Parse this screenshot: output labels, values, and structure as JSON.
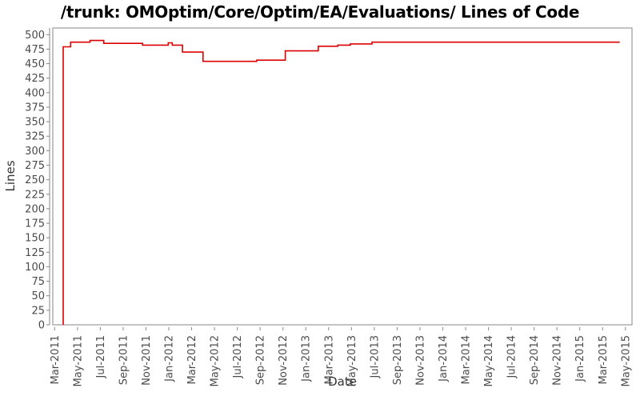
{
  "title": "/trunk: OMOptim/Core/Optim/EA/Evaluations/ Lines of Code",
  "colors": {
    "line": "#dd0000",
    "frame": "#878787",
    "tick_label": "#4a4a4a",
    "axis_title": "#333333",
    "background": "#ffffff"
  },
  "chart_data": {
    "type": "line",
    "subtype": "step",
    "title": "/trunk: OMOptim/Core/Optim/EA/Evaluations/ Lines of Code",
    "xlabel": "Date",
    "ylabel": "Lines",
    "grid": false,
    "legend_position": "none",
    "ylim": [
      0,
      511
    ],
    "y_ticks": [
      0,
      25,
      50,
      75,
      100,
      125,
      150,
      175,
      200,
      225,
      250,
      275,
      300,
      325,
      350,
      375,
      400,
      425,
      450,
      475,
      500
    ],
    "x_tick_labels": [
      "Mar-2011",
      "May-2011",
      "Jul-2011",
      "Sep-2011",
      "Nov-2011",
      "Jan-2012",
      "Mar-2012",
      "May-2012",
      "Jul-2012",
      "Sep-2012",
      "Nov-2012",
      "Jan-2013",
      "Mar-2013",
      "May-2013",
      "Jul-2013",
      "Sep-2013",
      "Nov-2013",
      "Jan-2014",
      "Mar-2014",
      "May-2014",
      "Jul-2014",
      "Sep-2014",
      "Nov-2014",
      "Jan-2015",
      "Mar-2015",
      "May-2015"
    ],
    "x_unit": "months_after_Mar-2011_per_tick_step_2",
    "series": [
      {
        "name": "Lines of Code",
        "color": "#dd0000",
        "start_value": 0,
        "end_m": 49.5,
        "steps": [
          {
            "m": 0.75,
            "value": 479
          },
          {
            "m": 1.4,
            "value": 487
          },
          {
            "m": 3.1,
            "value": 490
          },
          {
            "m": 4.3,
            "value": 485
          },
          {
            "m": 7.7,
            "value": 482
          },
          {
            "m": 9.95,
            "value": 486
          },
          {
            "m": 10.3,
            "value": 482
          },
          {
            "m": 11.2,
            "value": 470
          },
          {
            "m": 13.0,
            "value": 454
          },
          {
            "m": 17.7,
            "value": 456
          },
          {
            "m": 20.2,
            "value": 472
          },
          {
            "m": 23.1,
            "value": 480
          },
          {
            "m": 24.8,
            "value": 482
          },
          {
            "m": 25.9,
            "value": 484
          },
          {
            "m": 27.8,
            "value": 487
          }
        ]
      }
    ]
  }
}
